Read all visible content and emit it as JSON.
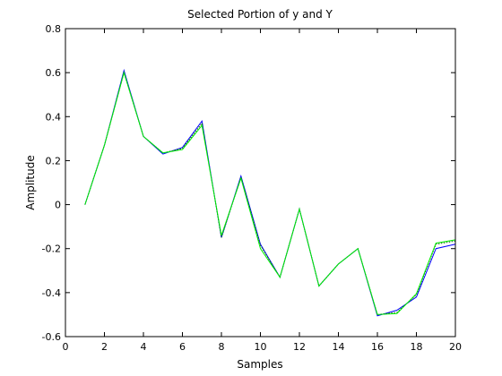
{
  "chart_data": {
    "type": "line",
    "title": "Selected Portion of y and Y",
    "xlabel": "Samples",
    "ylabel": "Amplitude",
    "xlim": [
      0,
      20
    ],
    "ylim": [
      -0.6,
      0.8
    ],
    "xticks": [
      0,
      2,
      4,
      6,
      8,
      10,
      12,
      14,
      16,
      18,
      20
    ],
    "yticks": [
      -0.6,
      -0.4,
      -0.2,
      0,
      0.2,
      0.4,
      0.6,
      0.8
    ],
    "grid": false,
    "series": [
      {
        "color": "#0000ff",
        "style": "solid",
        "x": [
          1,
          2,
          3,
          4,
          5,
          6,
          7,
          8,
          9,
          10,
          11,
          12,
          13,
          14,
          15,
          16,
          17,
          18,
          19,
          20
        ],
        "values": [
          0.0,
          0.27,
          0.61,
          0.31,
          0.23,
          0.26,
          0.38,
          -0.15,
          0.13,
          -0.18,
          -0.33,
          -0.02,
          -0.37,
          -0.27,
          -0.2,
          -0.505,
          -0.48,
          -0.42,
          -0.2,
          -0.18
        ]
      },
      {
        "color": "#006600",
        "style": "dotted",
        "x": [
          1,
          2,
          3,
          4,
          5,
          6,
          7,
          8,
          9,
          10,
          11,
          12,
          13,
          14,
          15,
          16,
          17,
          18,
          19,
          20
        ],
        "values": [
          0.0,
          0.27,
          0.6,
          0.31,
          0.235,
          0.255,
          0.37,
          -0.15,
          0.125,
          -0.185,
          -0.33,
          -0.02,
          -0.37,
          -0.27,
          -0.2,
          -0.5,
          -0.49,
          -0.41,
          -0.18,
          -0.165
        ]
      },
      {
        "color": "#00ee00",
        "style": "solid",
        "x": [
          1,
          2,
          3,
          4,
          5,
          6,
          7,
          8,
          9,
          10,
          11,
          12,
          13,
          14,
          15,
          16,
          17,
          18,
          19,
          20
        ],
        "values": [
          0.0,
          0.27,
          0.6,
          0.31,
          0.235,
          0.25,
          0.36,
          -0.14,
          0.12,
          -0.2,
          -0.33,
          -0.02,
          -0.37,
          -0.27,
          -0.2,
          -0.5,
          -0.495,
          -0.405,
          -0.175,
          -0.16
        ]
      }
    ]
  }
}
